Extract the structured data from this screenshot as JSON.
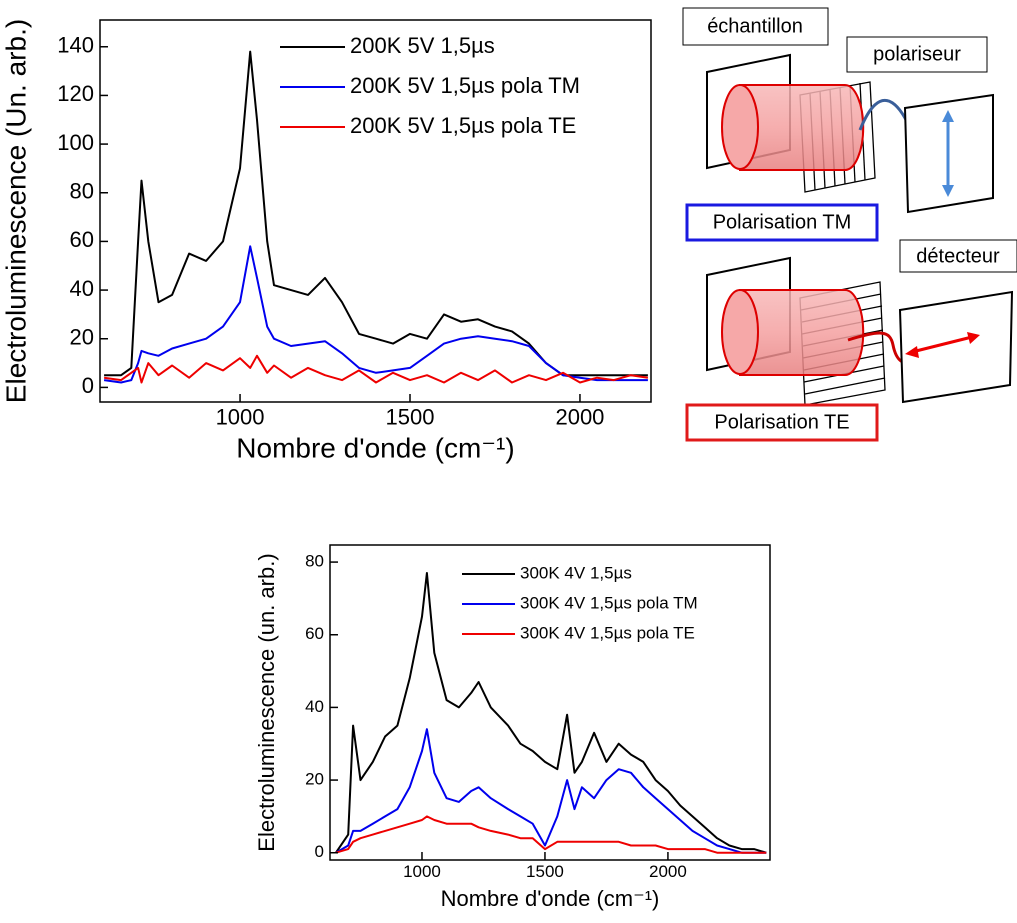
{
  "chart_data": [
    {
      "type": "line",
      "x_label": "Nombre d'onde (cm⁻¹)",
      "y_label": "Electroluminescence (Un. arb.)",
      "xlim": [
        588,
        2209
      ],
      "ylim": [
        -6,
        151
      ],
      "xticks": [
        1000,
        1500,
        2000
      ],
      "yticks": [
        0,
        20,
        40,
        60,
        80,
        100,
        120,
        140
      ],
      "x": [
        600,
        650,
        680,
        700,
        710,
        730,
        760,
        800,
        850,
        900,
        950,
        1000,
        1030,
        1050,
        1080,
        1100,
        1150,
        1200,
        1250,
        1300,
        1350,
        1400,
        1450,
        1500,
        1550,
        1600,
        1650,
        1700,
        1750,
        1800,
        1850,
        1900,
        1950,
        2000,
        2050,
        2100,
        2150,
        2200
      ],
      "series": [
        {
          "name": "200K 5V 1,5µs",
          "color": "#000000",
          "values": [
            5,
            5,
            8,
            60,
            85,
            60,
            35,
            38,
            55,
            52,
            60,
            90,
            138,
            110,
            60,
            42,
            40,
            38,
            45,
            35,
            22,
            20,
            18,
            22,
            20,
            30,
            27,
            28,
            25,
            23,
            18,
            10,
            5,
            5,
            5,
            5,
            5,
            5
          ]
        },
        {
          "name": "200K 5V 1,5µs pola TM",
          "color": "#0000ee",
          "values": [
            3,
            2,
            3,
            10,
            15,
            14,
            13,
            16,
            18,
            20,
            25,
            35,
            58,
            45,
            25,
            20,
            17,
            18,
            19,
            14,
            8,
            6,
            7,
            8,
            13,
            18,
            20,
            21,
            20,
            19,
            17,
            10,
            5,
            4,
            3,
            3,
            3,
            3
          ]
        },
        {
          "name": "200K 5V 1,5µs pola TE",
          "color": "#ee0000",
          "values": [
            4,
            3,
            6,
            8,
            2,
            10,
            5,
            9,
            4,
            10,
            7,
            12,
            8,
            13,
            6,
            9,
            4,
            8,
            5,
            3,
            7,
            2,
            6,
            3,
            5,
            2,
            6,
            3,
            7,
            2,
            5,
            3,
            6,
            2,
            4,
            3,
            5,
            4
          ]
        }
      ]
    },
    {
      "type": "line",
      "x_label": "Nombre d'onde (cm⁻¹)",
      "y_label": "Electroluminescence (un. arb.)",
      "xlim": [
        626,
        2415
      ],
      "ylim": [
        -2,
        84.7
      ],
      "xticks": [
        1000,
        1500,
        2000
      ],
      "yticks": [
        0,
        20,
        40,
        60,
        80
      ],
      "x": [
        650,
        700,
        720,
        750,
        800,
        850,
        900,
        950,
        1000,
        1020,
        1050,
        1100,
        1150,
        1200,
        1230,
        1280,
        1350,
        1400,
        1450,
        1500,
        1550,
        1590,
        1620,
        1650,
        1700,
        1750,
        1800,
        1850,
        1900,
        1950,
        2000,
        2050,
        2100,
        2150,
        2200,
        2250,
        2300,
        2350,
        2400
      ],
      "series": [
        {
          "name": "300K 4V 1,5µs",
          "color": "#000000",
          "values": [
            0,
            5,
            35,
            20,
            25,
            32,
            35,
            48,
            65,
            77,
            55,
            42,
            40,
            44,
            47,
            40,
            35,
            30,
            28,
            25,
            23,
            38,
            22,
            25,
            33,
            25,
            30,
            27,
            25,
            20,
            17,
            13,
            10,
            7,
            4,
            2,
            1,
            1,
            0
          ]
        },
        {
          "name": "300K 4V 1,5µs pola TM",
          "color": "#0000ee",
          "values": [
            0,
            2,
            6,
            6,
            8,
            10,
            12,
            18,
            28,
            34,
            22,
            15,
            14,
            17,
            18,
            15,
            12,
            10,
            8,
            2,
            10,
            20,
            12,
            18,
            15,
            20,
            23,
            22,
            18,
            15,
            12,
            9,
            6,
            4,
            2,
            1,
            0,
            0,
            0
          ]
        },
        {
          "name": "300K 4V 1,5µs pola TE",
          "color": "#ee0000",
          "values": [
            0,
            1,
            3,
            4,
            5,
            6,
            7,
            8,
            9,
            10,
            9,
            8,
            8,
            8,
            7,
            6,
            5,
            4,
            4,
            1,
            3,
            3,
            3,
            3,
            3,
            3,
            3,
            2,
            2,
            2,
            1,
            1,
            1,
            1,
            0,
            0,
            0,
            0,
            0
          ]
        }
      ]
    }
  ],
  "diagram": {
    "sample": "échantillon",
    "polarizer": "polariseur",
    "tm": "Polarisation TM",
    "detector": "détecteur",
    "te": "Polarisation TE"
  }
}
